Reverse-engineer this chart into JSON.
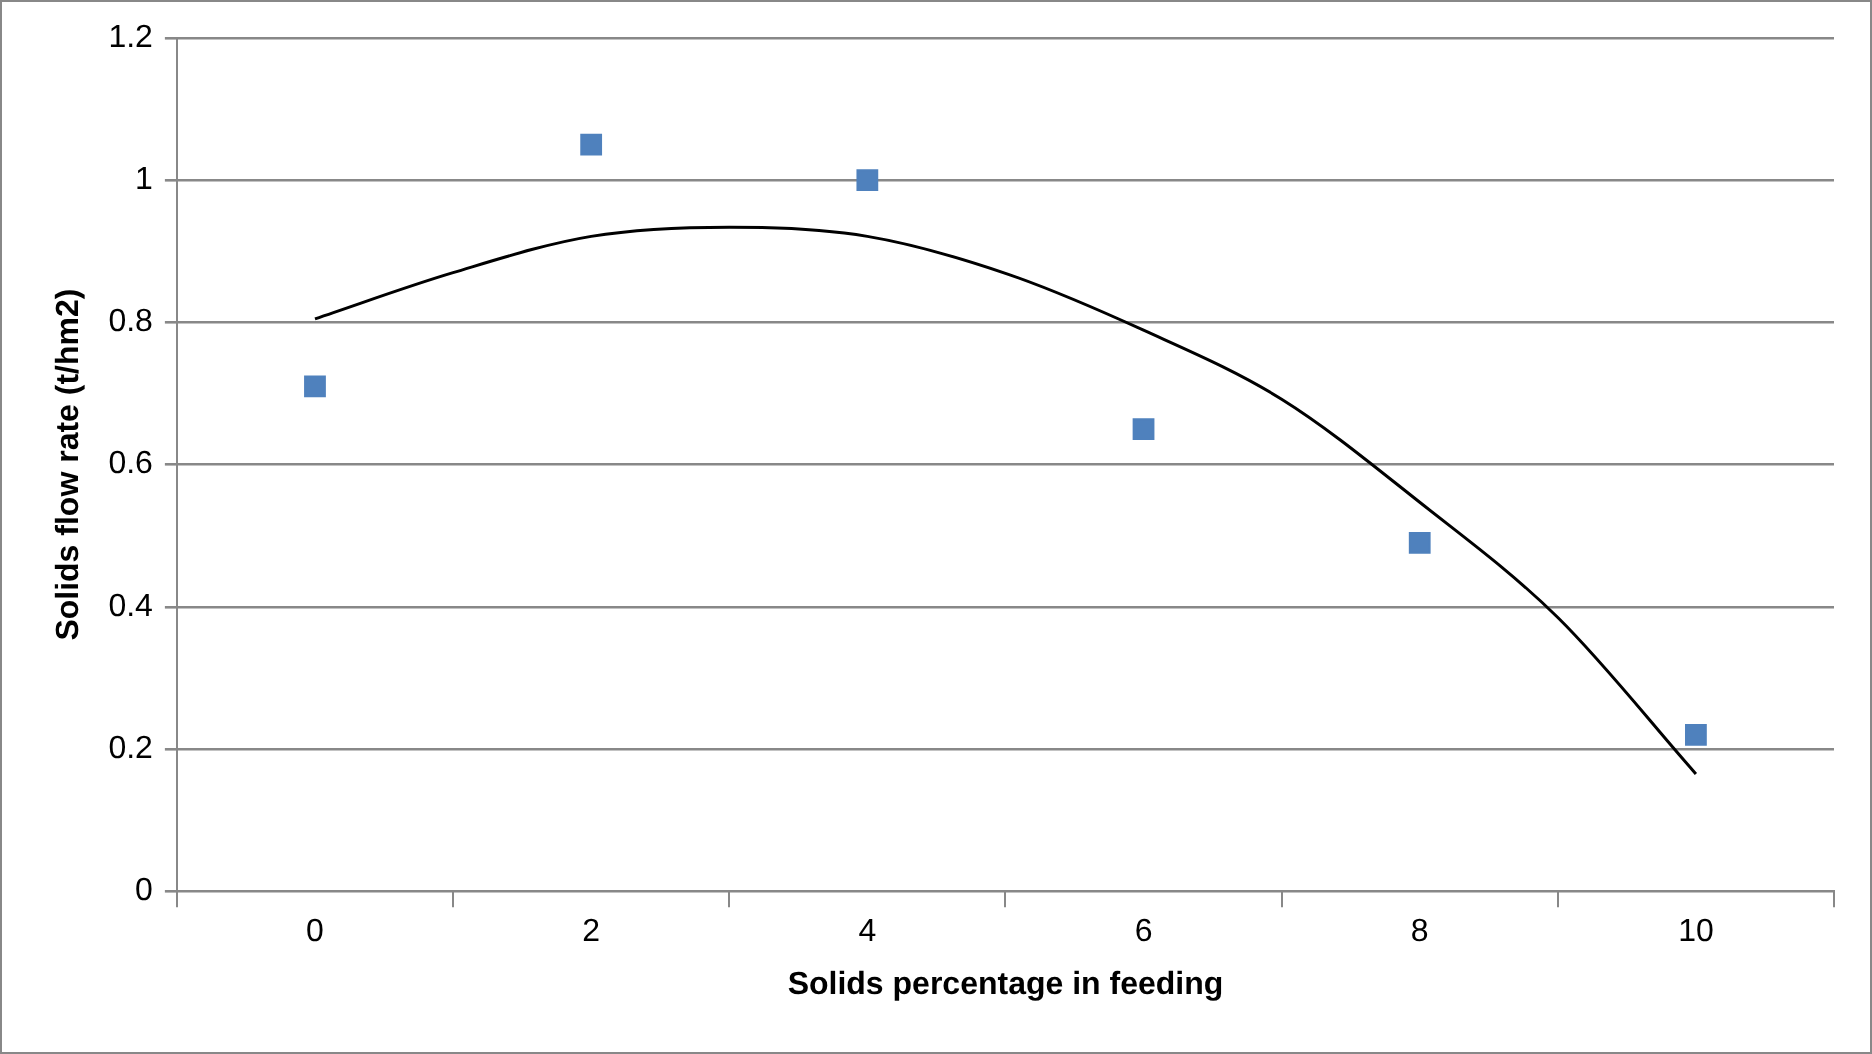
{
  "chart_data": {
    "type": "scatter",
    "xlabel": "Solids percentage in feeding",
    "ylabel": "Solids flow rate (t/hm2)",
    "xlim": [
      -1,
      11
    ],
    "xticks": [
      {
        "value": -1,
        "label": null
      },
      0,
      {
        "value": 1,
        "label": null
      },
      2,
      {
        "value": 3,
        "label": null
      },
      4,
      {
        "value": 5,
        "label": null
      },
      6,
      {
        "value": 7,
        "label": null
      },
      8,
      {
        "value": 9,
        "label": null
      },
      10,
      {
        "value": 11,
        "label": null
      }
    ],
    "ylim": [
      0,
      1.2
    ],
    "yticks": [
      0,
      0.2,
      0.4,
      0.6,
      0.8,
      1,
      1.2
    ],
    "grid": "y",
    "legend": false,
    "series": [
      {
        "color": "#4f81bd",
        "marker": "square",
        "x": [
          0,
          2,
          4,
          6,
          8,
          10
        ],
        "values": [
          0.71,
          1.05,
          1.0,
          0.65,
          0.49,
          0.22
        ]
      },
      {
        "type": "line",
        "color": "#000000",
        "marker": "none",
        "line_style": "solid",
        "x": [
          0,
          1,
          2,
          3,
          4,
          5,
          6,
          7,
          8,
          9,
          10
        ],
        "values": [
          0.805,
          0.87,
          0.921,
          0.934,
          0.921,
          0.869,
          0.789,
          0.692,
          0.547,
          0.385,
          0.165
        ]
      }
    ]
  }
}
